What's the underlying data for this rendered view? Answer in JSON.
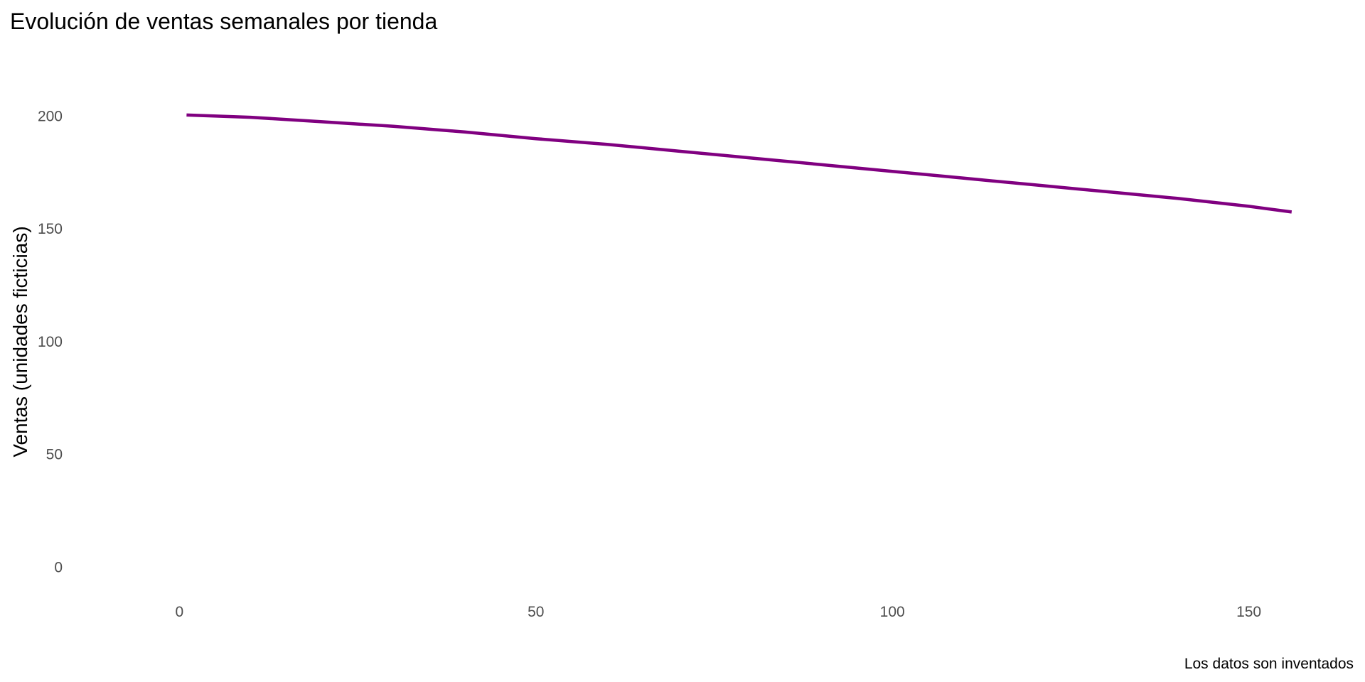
{
  "chart_data": {
    "type": "line",
    "title": "Evolución de ventas semanales por tienda",
    "xlabel": "",
    "ylabel": "Ventas (unidades ficticias)",
    "caption": "Los datos son inventados",
    "xlim": [
      -14.2,
      164.3
    ],
    "ylim": [
      -10,
      220
    ],
    "x_ticks": [
      0,
      50,
      100,
      150
    ],
    "x_tick_labels": [
      "0",
      "50",
      "100",
      "150"
    ],
    "y_ticks": [
      0,
      50,
      100,
      150,
      200
    ],
    "y_tick_labels": [
      "0",
      "50",
      "100",
      "150",
      "200"
    ],
    "grid": false,
    "legend": "none",
    "series": [
      {
        "color": "#800080",
        "x": [
          1,
          10,
          20,
          30,
          40,
          50,
          60,
          70,
          80,
          90,
          100,
          110,
          120,
          130,
          140,
          150,
          156
        ],
        "y": [
          200.5,
          199.5,
          197.5,
          195.5,
          193.0,
          190.0,
          187.5,
          184.5,
          181.5,
          178.5,
          175.5,
          172.5,
          169.5,
          166.5,
          163.5,
          160.0,
          157.5
        ]
      }
    ]
  }
}
